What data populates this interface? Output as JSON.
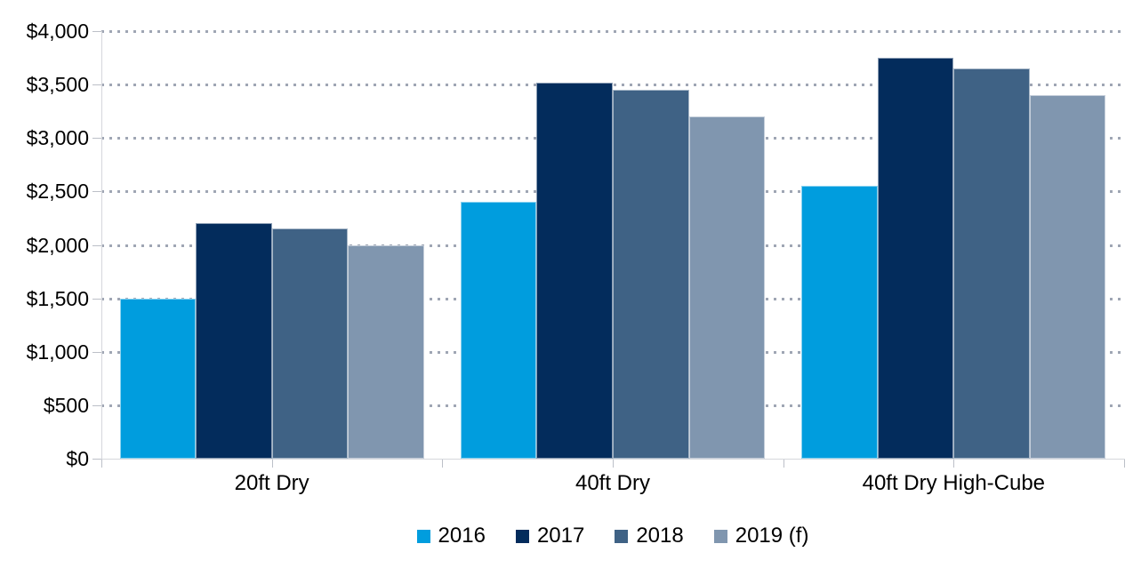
{
  "chart_data": {
    "type": "bar",
    "title": "",
    "xlabel": "",
    "ylabel": "",
    "categories": [
      "20ft Dry",
      "40ft Dry",
      "40ft Dry High-Cube"
    ],
    "series": [
      {
        "name": "2016",
        "color": "#009dde",
        "values": [
          1500,
          2400,
          2550
        ]
      },
      {
        "name": "2017",
        "color": "#032c5c",
        "values": [
          2200,
          3520,
          3750
        ]
      },
      {
        "name": "2018",
        "color": "#3f6285",
        "values": [
          2150,
          3450,
          3650
        ]
      },
      {
        "name": "2019 (f)",
        "color": "#8096af",
        "values": [
          2000,
          3200,
          3400
        ]
      }
    ],
    "y_axis": {
      "min": 0,
      "max": 4000,
      "step": 500,
      "tick_labels": [
        "$0",
        "$500",
        "$1,000",
        "$1,500",
        "$2,000",
        "$2,500",
        "$3,000",
        "$3,500",
        "$4,000"
      ]
    },
    "grid": "horizontal dotted",
    "legend_position": "bottom",
    "colors": {
      "gridline": "#9fa6b4",
      "axis_line": "#d5d7dc",
      "tick": "#bcc0c8",
      "text": "#000000",
      "background": "#ffffff"
    }
  }
}
